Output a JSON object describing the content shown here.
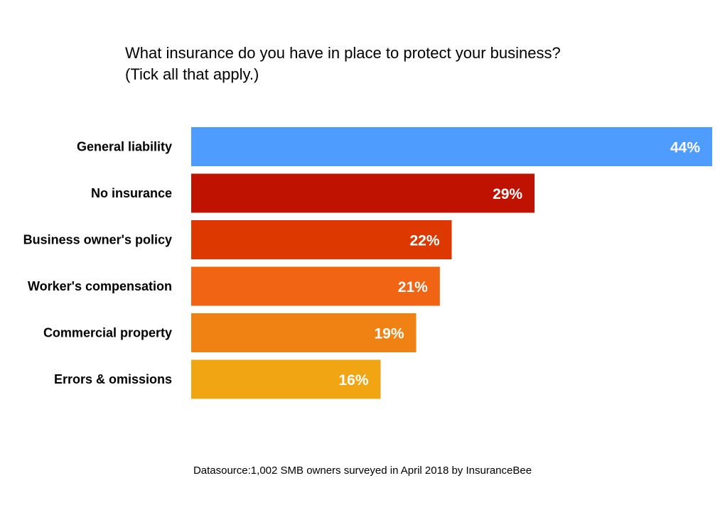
{
  "chart_data": {
    "type": "bar",
    "orientation": "horizontal",
    "title": "What insurance do you have in place to protect your business?",
    "subtitle": "(Tick all that apply.)",
    "categories": [
      "General liability",
      "No insurance",
      "Business owner's policy",
      "Worker's compensation",
      "Commercial property",
      "Errors & omissions"
    ],
    "values": [
      44,
      29,
      22,
      21,
      19,
      16
    ],
    "value_labels": [
      "44%",
      "29%",
      "22%",
      "21%",
      "19%",
      "16%"
    ],
    "colors": [
      "#4f9cff",
      "#c01200",
      "#dd3800",
      "#f06414",
      "#f08213",
      "#f2a513"
    ],
    "unit": "%",
    "xlim": [
      0,
      44
    ],
    "grid": false,
    "legend": "none",
    "xlabel": "",
    "ylabel": ""
  },
  "source": "Datasource:1,002 SMB owners surveyed in April 2018 by InsuranceBee"
}
